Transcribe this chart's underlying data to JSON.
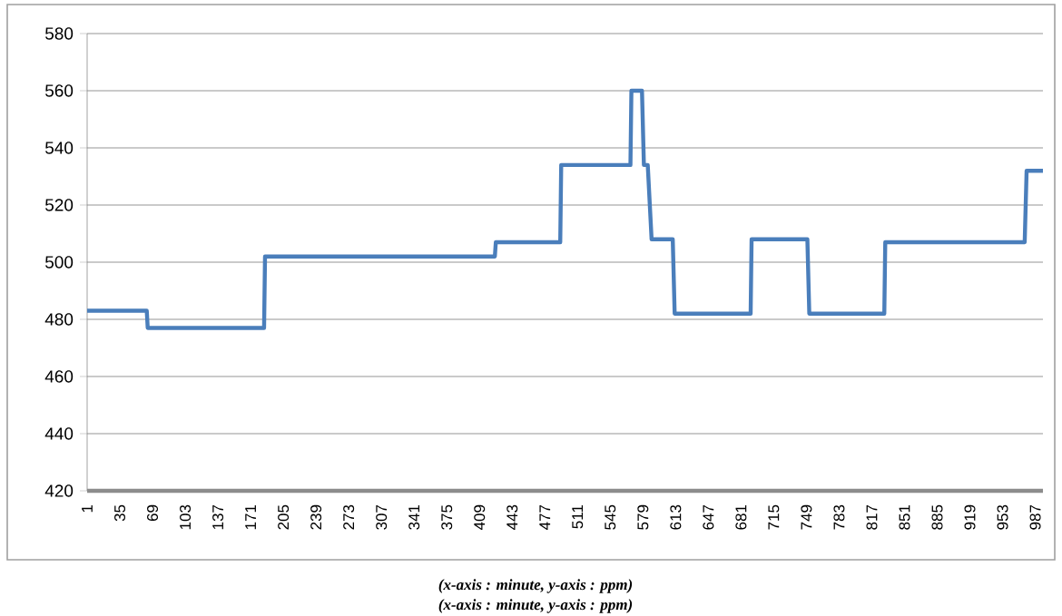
{
  "chart_data": {
    "type": "line",
    "x": [
      1,
      63,
      64,
      185,
      186,
      425,
      426,
      493,
      494,
      566,
      567,
      578,
      580,
      584,
      588,
      610,
      612,
      691,
      692,
      750,
      752,
      830,
      831,
      976,
      978,
      995
    ],
    "values": [
      483,
      483,
      477,
      477,
      502,
      502,
      507,
      507,
      534,
      534,
      560,
      560,
      534,
      534,
      508,
      508,
      482,
      482,
      508,
      508,
      482,
      482,
      507,
      507,
      532,
      532
    ],
    "color": "#4a7ebb",
    "xlim": [
      1,
      995
    ],
    "xticks": [
      1,
      35,
      69,
      103,
      137,
      171,
      205,
      239,
      273,
      307,
      341,
      375,
      409,
      443,
      477,
      511,
      545,
      579,
      613,
      647,
      681,
      715,
      749,
      783,
      817,
      851,
      885,
      919,
      953,
      987
    ],
    "ylim": [
      420,
      580
    ],
    "yticks": [
      420,
      440,
      460,
      480,
      500,
      520,
      540,
      560,
      580
    ],
    "grid": "y",
    "marker": "none",
    "line_style": "solid",
    "annotations": [
      "(x-axis : minute,  y-axis : ppm)",
      "(x-axis : minute,  y-axis : ppm)"
    ]
  }
}
